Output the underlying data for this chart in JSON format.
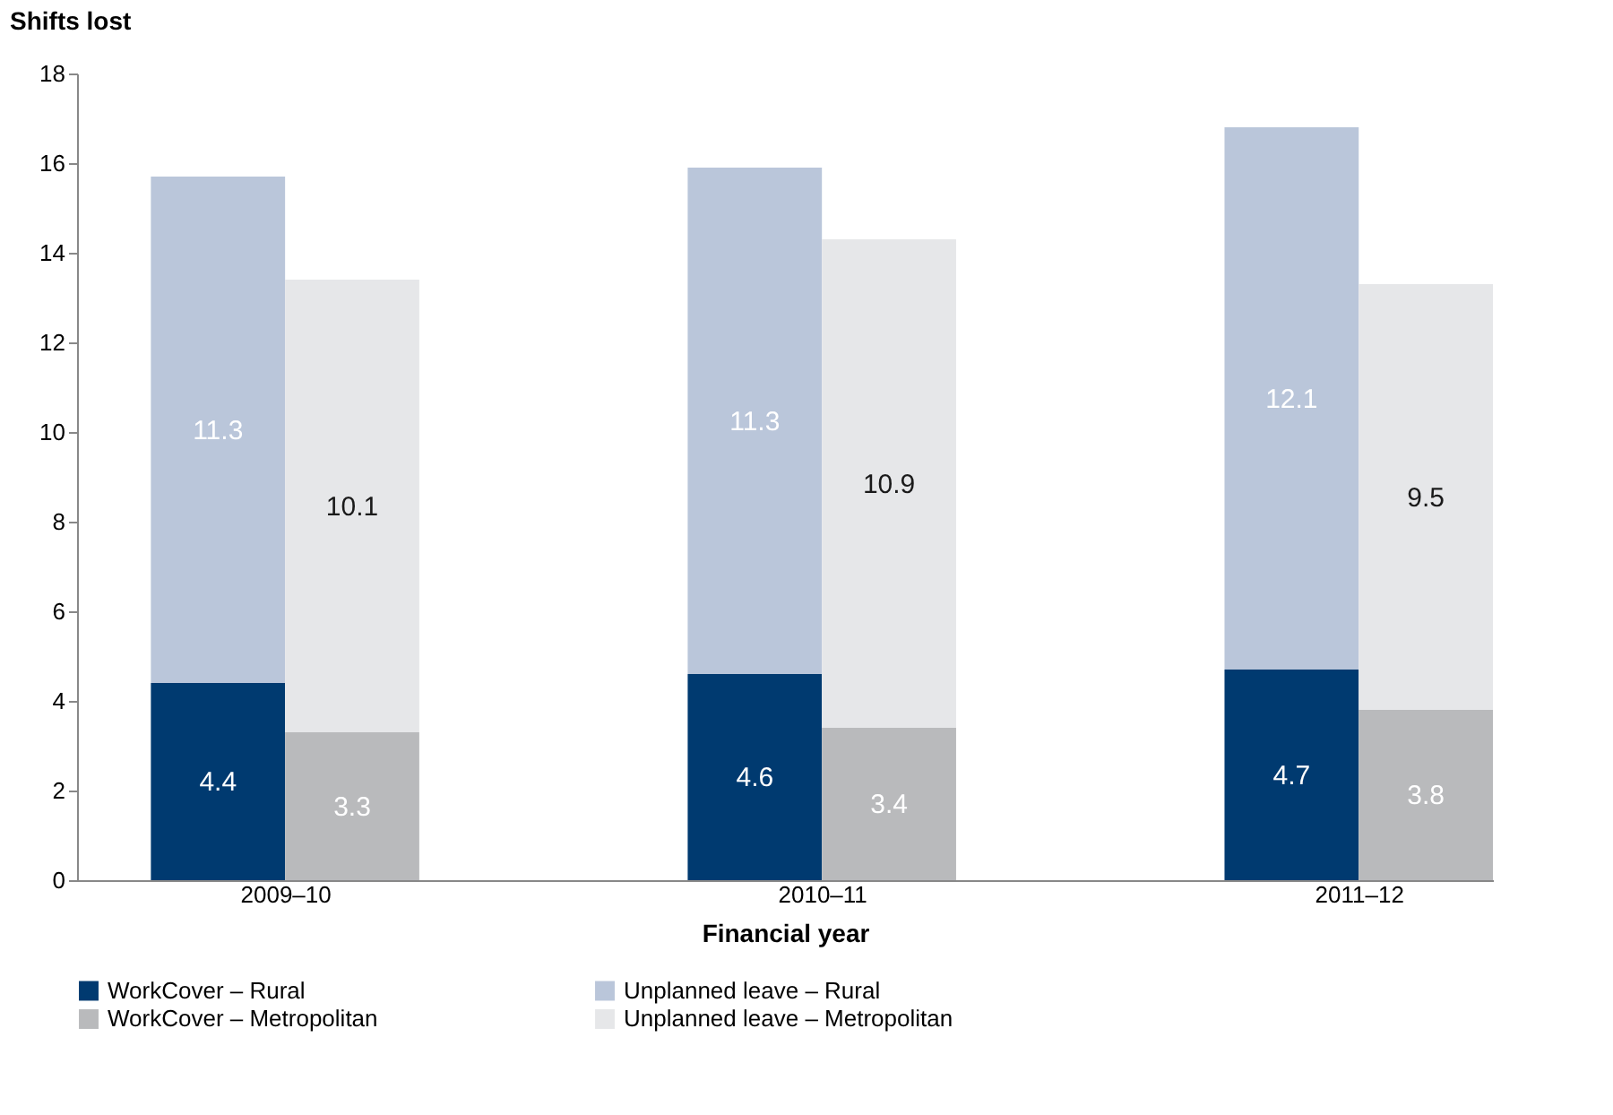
{
  "chart_data": {
    "type": "bar",
    "stacked": true,
    "xlabel": "Financial year",
    "ylabel": "Shifts lost",
    "categories": [
      "2009–10",
      null,
      null,
      null,
      "2010–11",
      null,
      null,
      null,
      "2011–12",
      null
    ],
    "series": [
      {
        "name": "WorkCover – Rural",
        "color": "#003a70",
        "values": [
          4.4,
          null,
          null,
          null,
          4.6,
          null,
          null,
          null,
          4.7,
          null
        ]
      },
      {
        "name": "Unplanned leave – Rural",
        "color": "#bac6da",
        "values": [
          11.3,
          null,
          null,
          null,
          11.3,
          null,
          null,
          null,
          12.1,
          null
        ]
      },
      {
        "name": "WorkCover – Metropolitan",
        "color": "#b9babc",
        "values": [
          null,
          3.3,
          null,
          null,
          null,
          3.4,
          null,
          null,
          null,
          3.8
        ]
      },
      {
        "name": "Unplanned leave – Metropolitan",
        "color": "#e6e7e9",
        "values": [
          null,
          10.1,
          null,
          null,
          null,
          10.9,
          null,
          null,
          null,
          9.5
        ]
      }
    ],
    "ylim": [
      0,
      18
    ],
    "yticks": [
      0,
      2,
      4,
      6,
      8,
      10,
      12,
      14,
      16,
      18
    ],
    "data_labels": true,
    "grid": false,
    "legend": "bottom"
  }
}
